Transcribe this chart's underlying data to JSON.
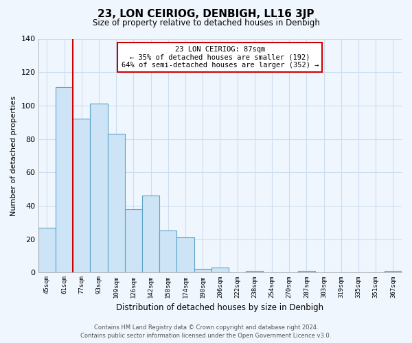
{
  "title": "23, LON CEIRIOG, DENBIGH, LL16 3JP",
  "subtitle": "Size of property relative to detached houses in Denbigh",
  "xlabel": "Distribution of detached houses by size in Denbigh",
  "ylabel": "Number of detached properties",
  "bar_labels": [
    "45sqm",
    "61sqm",
    "77sqm",
    "93sqm",
    "109sqm",
    "126sqm",
    "142sqm",
    "158sqm",
    "174sqm",
    "190sqm",
    "206sqm",
    "222sqm",
    "238sqm",
    "254sqm",
    "270sqm",
    "287sqm",
    "303sqm",
    "319sqm",
    "335sqm",
    "351sqm",
    "367sqm"
  ],
  "bar_values": [
    27,
    111,
    92,
    101,
    83,
    38,
    46,
    25,
    21,
    2,
    3,
    0,
    1,
    0,
    0,
    1,
    0,
    0,
    0,
    0,
    1
  ],
  "bar_color": "#cce4f5",
  "bar_edge_color": "#5ba3cc",
  "vline_x_index": 1,
  "vline_color": "#cc0000",
  "annotation_line1": "23 LON CEIRIOG: 87sqm",
  "annotation_line2": "← 35% of detached houses are smaller (192)",
  "annotation_line3": "64% of semi-detached houses are larger (352) →",
  "annotation_box_color": "#ffffff",
  "annotation_box_edge": "#cc0000",
  "ylim": [
    0,
    140
  ],
  "yticks": [
    0,
    20,
    40,
    60,
    80,
    100,
    120,
    140
  ],
  "grid_color": "#ccddf0",
  "footer_line1": "Contains HM Land Registry data © Crown copyright and database right 2024.",
  "footer_line2": "Contains public sector information licensed under the Open Government Licence v3.0.",
  "bg_color": "#f0f6fd"
}
